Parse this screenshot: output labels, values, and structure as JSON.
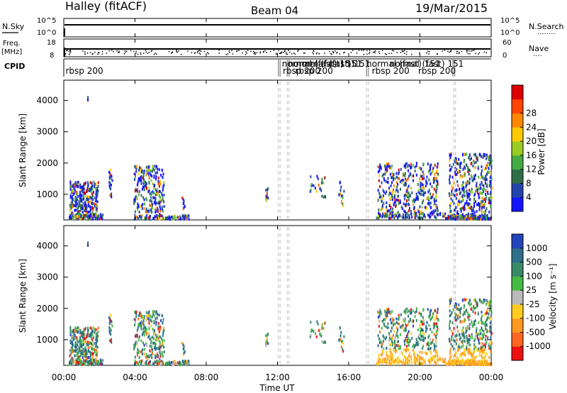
{
  "header": {
    "station": "Halley (fitACF)",
    "beam": "Beam 04",
    "date": "19/Mar/2015"
  },
  "panels": {
    "nsky_label": "N.Sky",
    "nsearch_label": "N.Search",
    "nsearch_dots": "........",
    "freq_label": "Freq.",
    "freq_unit": "[MHz]",
    "nave_label": "Nave",
    "nave_dots": "....",
    "cpid_label": "CPID",
    "noise_ticks_left": [
      "10^5",
      "10^0"
    ],
    "noise_ticks_right": [
      "10^5",
      "10^0"
    ],
    "freq_ticks": [
      "18",
      "8"
    ],
    "nave_ticks": [
      "60",
      "0"
    ],
    "cpid_labels": [
      {
        "text": "rbsp 200",
        "hour": 0.1,
        "row": 0
      },
      {
        "text": "normal (fast) 151",
        "hour": 12.25,
        "row": 1
      },
      {
        "text": "normal (fast) 151",
        "hour": 12.6,
        "row": 1
      },
      {
        "text": "normal (fast) 151",
        "hour": 13.05,
        "row": 1
      },
      {
        "text": "rbsp 200",
        "hour": 12.3,
        "row": 0
      },
      {
        "text": "rbsp 200",
        "hour": 13.0,
        "row": 0
      },
      {
        "text": "normal (fast) 151",
        "hour": 17.0,
        "row": 1
      },
      {
        "text": "normal (fast) 151",
        "hour": 18.3,
        "row": 1
      },
      {
        "text": "rbsp 200",
        "hour": 17.3,
        "row": 0
      },
      {
        "text": "rbsp 200",
        "hour": 19.9,
        "row": 0
      }
    ],
    "cpid_boundaries": [
      12.05,
      12.15,
      12.55,
      12.65,
      17.0,
      17.1,
      21.85,
      21.95
    ]
  },
  "chart_data": [
    {
      "type": "heatmap",
      "name": "power",
      "ylabel": "Slant Range [km]",
      "xlabel": "Time UT",
      "x_ticks": [
        "00:00",
        "04:00",
        "08:00",
        "12:00",
        "16:00",
        "20:00",
        "00:00"
      ],
      "y_ticks": [
        1000,
        2000,
        3000,
        4000
      ],
      "ylim": [
        180,
        4650
      ],
      "xlim_hours": [
        0,
        24
      ],
      "colorbar": {
        "label": "Power [dB]",
        "ticks": [
          4,
          8,
          12,
          16,
          20,
          24,
          28
        ],
        "colors": [
          "#1414ff",
          "#2244aa",
          "#2e6f4a",
          "#44aa44",
          "#99cc22",
          "#ffcc00",
          "#ff8800",
          "#ff4400",
          "#dd0000"
        ]
      },
      "gap_lines_hours": [
        12.05,
        12.55,
        17.0,
        21.9
      ]
    },
    {
      "type": "heatmap",
      "name": "velocity",
      "ylabel": "Slant Range [km]",
      "xlabel": "Time UT",
      "x_ticks": [
        "00:00",
        "04:00",
        "08:00",
        "12:00",
        "16:00",
        "20:00",
        "00:00"
      ],
      "y_ticks": [
        1000,
        2000,
        3000,
        4000
      ],
      "ylim": [
        180,
        4650
      ],
      "xlim_hours": [
        0,
        24
      ],
      "colorbar": {
        "label": "Velocity [m s⁻¹]",
        "ticks": [
          "1000",
          "500",
          "100",
          "25",
          "-25",
          "-100",
          "-500",
          "-1000"
        ],
        "colors": [
          "#2244bb",
          "#2e6f8a",
          "#3a8a6a",
          "#44bb44",
          "#bbbbbb",
          "#ffcc22",
          "#ff9922",
          "#ff6622",
          "#ee1111"
        ]
      },
      "gap_lines_hours": [
        12.05,
        12.55,
        17.0,
        21.9
      ]
    }
  ],
  "scatter_clusters": [
    {
      "h0": 0.3,
      "h1": 1.9,
      "r0": 400,
      "r1": 1400,
      "n": 260
    },
    {
      "h0": 0.25,
      "h1": 2.2,
      "r0": 200,
      "r1": 380,
      "n": 120
    },
    {
      "h0": 1.3,
      "h1": 1.4,
      "r0": 4000,
      "r1": 4100,
      "n": 3
    },
    {
      "h0": 2.5,
      "h1": 2.7,
      "r0": 800,
      "r1": 1800,
      "n": 20
    },
    {
      "h0": 3.9,
      "h1": 5.6,
      "r0": 300,
      "r1": 1900,
      "n": 240
    },
    {
      "h0": 3.9,
      "h1": 7.0,
      "r0": 200,
      "r1": 320,
      "n": 90
    },
    {
      "h0": 6.6,
      "h1": 6.8,
      "r0": 500,
      "r1": 900,
      "n": 8
    },
    {
      "h0": 11.3,
      "h1": 11.5,
      "r0": 700,
      "r1": 1300,
      "n": 10
    },
    {
      "h0": 13.8,
      "h1": 14.7,
      "r0": 900,
      "r1": 1600,
      "n": 30
    },
    {
      "h0": 15.4,
      "h1": 15.7,
      "r0": 600,
      "r1": 1400,
      "n": 14
    },
    {
      "h0": 17.6,
      "h1": 21.0,
      "r0": 400,
      "r1": 2000,
      "n": 380
    },
    {
      "h0": 17.5,
      "h1": 21.5,
      "r0": 220,
      "r1": 400,
      "n": 120
    },
    {
      "h0": 21.6,
      "h1": 24.0,
      "r0": 200,
      "r1": 2300,
      "n": 420
    },
    {
      "h0": 21.5,
      "h1": 24.0,
      "r0": 200,
      "r1": 320,
      "n": 140
    }
  ]
}
